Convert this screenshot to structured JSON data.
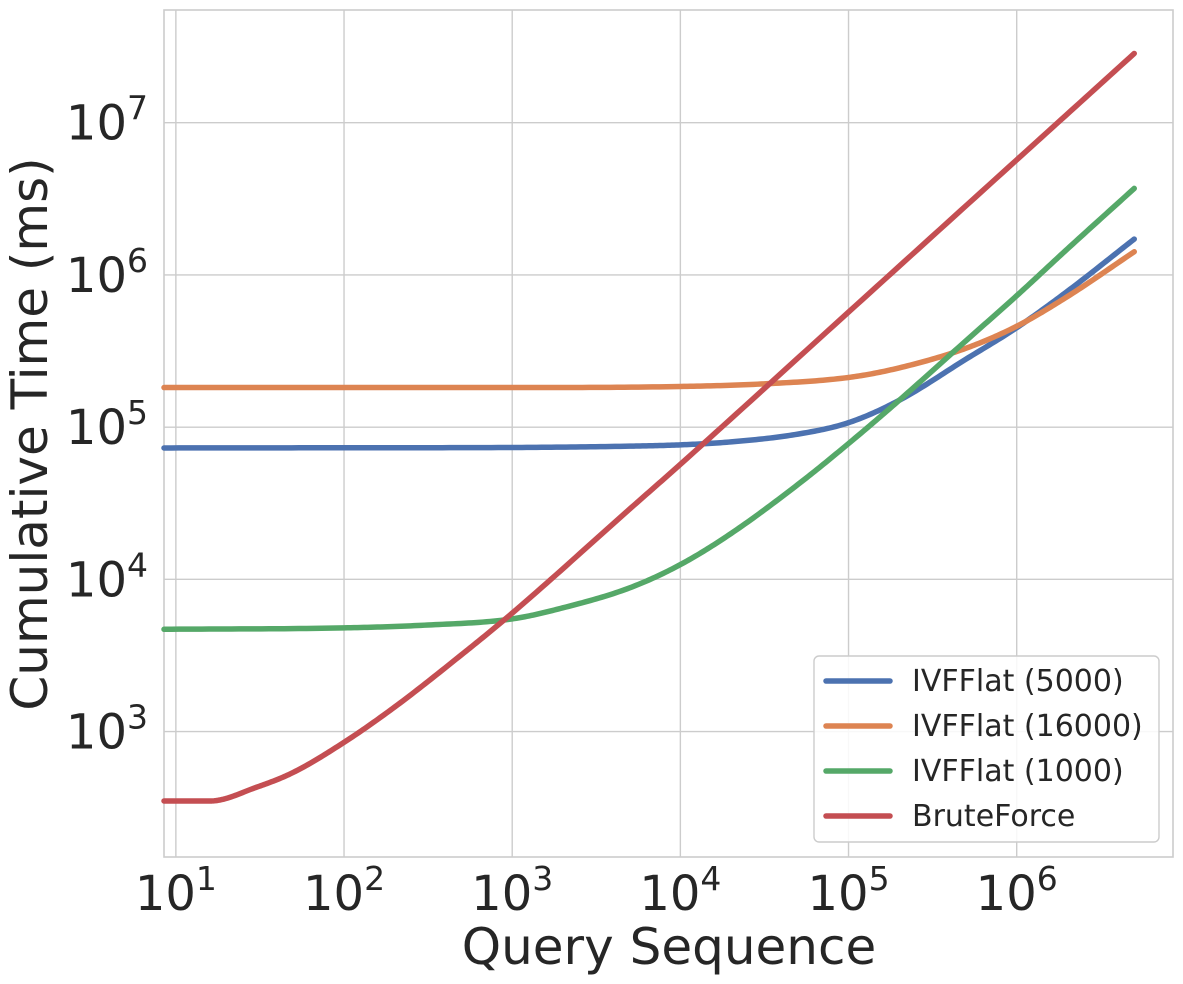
{
  "chart_data": {
    "type": "line",
    "title": "",
    "xlabel": "Query Sequence",
    "ylabel": "Cumulative Time (ms)",
    "xscale": "log",
    "yscale": "log",
    "xlim": [
      8.5,
      8500000
    ],
    "ylim": [
      150,
      55000000
    ],
    "grid": true,
    "legend_position": "bottom-right",
    "x_ticks": [
      {
        "value": 10,
        "base": "10",
        "exp": "1"
      },
      {
        "value": 100,
        "base": "10",
        "exp": "2"
      },
      {
        "value": 1000,
        "base": "10",
        "exp": "3"
      },
      {
        "value": 10000,
        "base": "10",
        "exp": "4"
      },
      {
        "value": 100000,
        "base": "10",
        "exp": "5"
      },
      {
        "value": 1000000,
        "base": "10",
        "exp": "6"
      }
    ],
    "y_ticks": [
      {
        "value": 1000,
        "base": "10",
        "exp": "3"
      },
      {
        "value": 10000,
        "base": "10",
        "exp": "4"
      },
      {
        "value": 100000,
        "base": "10",
        "exp": "5"
      },
      {
        "value": 1000000,
        "base": "10",
        "exp": "6"
      },
      {
        "value": 10000000,
        "base": "10",
        "exp": "7"
      }
    ],
    "series": [
      {
        "name": "IVFFlat (5000)",
        "color": "#4c72b0",
        "points": [
          [
            8.5,
            73000
          ],
          [
            100,
            73200
          ],
          [
            1000,
            73500
          ],
          [
            5000,
            75000
          ],
          [
            10000,
            76500
          ],
          [
            20000,
            80000
          ],
          [
            50000,
            90000
          ],
          [
            100000,
            107000
          ],
          [
            200000,
            150000
          ],
          [
            500000,
            280000
          ],
          [
            1000000,
            450000
          ],
          [
            2000000,
            780000
          ],
          [
            5000000,
            1720000
          ]
        ]
      },
      {
        "name": "IVFFlat (16000)",
        "color": "#dd8452",
        "points": [
          [
            8.5,
            182000
          ],
          [
            1000,
            182000
          ],
          [
            10000,
            185000
          ],
          [
            30000,
            192000
          ],
          [
            100000,
            212000
          ],
          [
            200000,
            245000
          ],
          [
            500000,
            330000
          ],
          [
            1000000,
            460000
          ],
          [
            2000000,
            720000
          ],
          [
            5000000,
            1420000
          ]
        ]
      },
      {
        "name": "IVFFlat (1000)",
        "color": "#55a868",
        "points": [
          [
            8.5,
            4700
          ],
          [
            100,
            4800
          ],
          [
            300,
            5000
          ],
          [
            1000,
            5500
          ],
          [
            2000,
            6500
          ],
          [
            5000,
            8800
          ],
          [
            10000,
            12500
          ],
          [
            20000,
            20000
          ],
          [
            50000,
            42000
          ],
          [
            100000,
            78000
          ],
          [
            200000,
            150000
          ],
          [
            500000,
            370000
          ],
          [
            1000000,
            730000
          ],
          [
            2000000,
            1480000
          ],
          [
            5000000,
            3700000
          ]
        ]
      },
      {
        "name": "BruteForce",
        "color": "#c44e52",
        "points": [
          [
            8.5,
            350
          ],
          [
            16,
            350
          ],
          [
            30,
            430
          ],
          [
            50,
            540
          ],
          [
            100,
            850
          ],
          [
            200,
            1450
          ],
          [
            500,
            3200
          ],
          [
            1000,
            6000
          ],
          [
            5000,
            29000
          ],
          [
            10000,
            57000
          ],
          [
            100000,
            570000
          ],
          [
            1000000,
            5700000
          ],
          [
            5000000,
            28500000
          ]
        ]
      }
    ]
  }
}
